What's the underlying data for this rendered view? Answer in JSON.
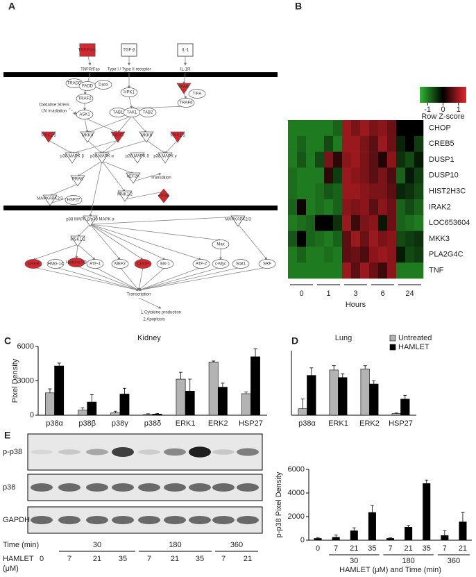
{
  "panel_labels": [
    "A",
    "B",
    "C",
    "D",
    "E"
  ],
  "pathway": {
    "nodes": [
      "TNF/FasL",
      "TGF-β",
      "IL-1",
      "TNFR/Fas",
      "Type I / Type II receptor",
      "IL-1R",
      "TRADD",
      "FADD",
      "Daxx",
      "TRAF2",
      "IRAK",
      "TIFA",
      "TRAF6",
      "HPK1",
      "Oxidative Stress",
      "UV irradiation",
      "ASK1",
      "TAB1",
      "TAK1",
      "TAB2",
      "MKK1/5",
      "MKK4",
      "MKK3",
      "MKK6",
      "MKK1/5",
      "p38 MAPK β",
      "p38 MAPK α",
      "p38 MAPK δ",
      "p38 MAPK γ",
      "PRAK",
      "eEF2K",
      "Translation",
      "MAPKAPK2/3",
      "HSP27",
      "MNK1/2",
      "eIF4E",
      "p38 MAPK β/p38 MAPK α",
      "MAPKAPK2/3",
      "MSK1/2",
      "CREB",
      "HMG-14",
      "Histone H3",
      "ATF-1",
      "MEF2",
      "CHOP",
      "Elk-1",
      "ATF-2",
      "Max",
      "c-Myc",
      "Stat1",
      "SRF",
      "Transcription",
      "1.Cytokine production",
      "2.Apoptosis"
    ]
  },
  "heatmap": {
    "rows": [
      "CHOP",
      "CREB5",
      "DUSP1",
      "DUSP10",
      "HIST2H3C",
      "IRAK2",
      "LOC653604",
      "MKK3",
      "PLA2G4C",
      "TNF"
    ],
    "col_groups": [
      "0",
      "1",
      "3",
      "6",
      "24"
    ],
    "xlabel": "Hours",
    "values": [
      [
        -1,
        -1,
        -1,
        -1,
        -1,
        -0.8,
        1,
        0.8,
        1,
        0.8,
        0.9,
        0.7,
        0,
        0,
        0
      ],
      [
        -1,
        -0.8,
        -1,
        -1,
        -0.6,
        -1,
        1,
        1,
        0.8,
        0.6,
        1,
        0.7,
        -0.3,
        0,
        -0.5
      ],
      [
        -1,
        -0.7,
        -1,
        -0.6,
        0.8,
        0.3,
        0.9,
        1,
        0.8,
        0.6,
        0.2,
        0.9,
        -0.4,
        -0.6,
        -0.2
      ],
      [
        -0.9,
        -1,
        -1,
        -1,
        0.3,
        -0.5,
        1,
        0.9,
        0.8,
        0.6,
        0.8,
        0.5,
        -0.8,
        -0.2,
        -0.5
      ],
      [
        -0.9,
        -1,
        -1,
        -0.9,
        -0.7,
        -0.8,
        1,
        1,
        0.9,
        0.8,
        0.8,
        0.6,
        -0.3,
        -0.4,
        -0.6
      ],
      [
        -0.8,
        0.1,
        -1,
        -0.9,
        -1,
        -0.8,
        0.9,
        0.8,
        0.9,
        0.6,
        0.9,
        0.7,
        -0.8,
        -0.6,
        -0.8
      ],
      [
        -1,
        -0.9,
        -0.8,
        0,
        0,
        -0.4,
        1,
        0.4,
        0.8,
        0.9,
        -0.2,
        0.7,
        -0.8,
        -0.9,
        -1
      ],
      [
        -0.7,
        0,
        -0.8,
        -0.9,
        -1,
        -0.8,
        0.6,
        1,
        0.7,
        1,
        0.8,
        0.9,
        -0.6,
        -0.5,
        -0.4
      ],
      [
        -1,
        -0.8,
        -1,
        -1,
        -0.9,
        -1,
        0.6,
        0.7,
        0.5,
        0.9,
        1,
        0.9,
        -0.2,
        -0.6,
        -0.5
      ],
      [
        -1,
        -1,
        -1,
        -1,
        -1,
        -1,
        1,
        0.6,
        1,
        0.7,
        0.4,
        0.9,
        -1,
        -1,
        -1
      ]
    ],
    "colorbar": {
      "label": "Row Z-score",
      "lim": [
        -1.5,
        1.5
      ],
      "ticks": [
        -1,
        0,
        1
      ]
    }
  },
  "chart_data": [
    {
      "type": "bar",
      "title": "Kidney",
      "ylabel": "Pixel Density",
      "categories": [
        "p38α",
        "p38β",
        "p38γ",
        "p38δ",
        "ERK1",
        "ERK2",
        "HSP27"
      ],
      "series": [
        {
          "color": "#b3b3b3",
          "values": [
            1950,
            450,
            200,
            80,
            3150,
            4650,
            1880
          ],
          "errors": [
            350,
            200,
            150,
            50,
            600,
            80,
            150
          ]
        },
        {
          "color": "#000000",
          "values": [
            4300,
            1150,
            1850,
            100,
            2100,
            2450,
            5100
          ],
          "errors": [
            250,
            650,
            500,
            50,
            1050,
            350,
            700
          ]
        }
      ],
      "ylim": [
        0,
        6000
      ],
      "yticks": [
        0,
        3000,
        6000
      ]
    },
    {
      "type": "bar",
      "title": "Lung",
      "categories": [
        "p38α",
        "ERK1",
        "ERK2",
        "HSP27"
      ],
      "series": [
        {
          "name": "Untreated",
          "color": "#b3b3b3",
          "values": [
            600,
            4200,
            4300,
            150
          ],
          "errors": [
            900,
            400,
            300,
            50
          ]
        },
        {
          "name": "HAMLET",
          "color": "#000000",
          "values": [
            3700,
            3500,
            2900,
            1500
          ],
          "errors": [
            700,
            350,
            300,
            350
          ]
        }
      ],
      "ylim": [
        0,
        6000
      ],
      "legend": "top-right"
    },
    {
      "type": "bar",
      "ylabel": "p-p38 Pixel Density",
      "xlabel": "HAMLET (μM) and Time (min)",
      "categories": [
        "0",
        "7",
        "21",
        "35",
        "7",
        "21",
        "35",
        "7",
        "21"
      ],
      "groups": [
        "30",
        "180",
        "360"
      ],
      "values": [
        150,
        250,
        800,
        2350,
        150,
        1100,
        4800,
        400,
        1550
      ],
      "errors": [
        80,
        200,
        250,
        600,
        50,
        150,
        300,
        400,
        800
      ],
      "color": "#000000",
      "ylim": [
        0,
        6000
      ],
      "yticks": [
        0,
        2000,
        4000,
        6000
      ]
    }
  ],
  "blot": {
    "rows": [
      "p-p38",
      "p38",
      "GAPDH"
    ],
    "time_label": "Time (min)",
    "times": [
      "30",
      "180",
      "360"
    ],
    "dose_label": "HAMLET",
    "dose_unit": "(μM)",
    "doses": [
      "0",
      "7",
      "21",
      "35",
      "7",
      "21",
      "35",
      "7",
      "21"
    ]
  }
}
